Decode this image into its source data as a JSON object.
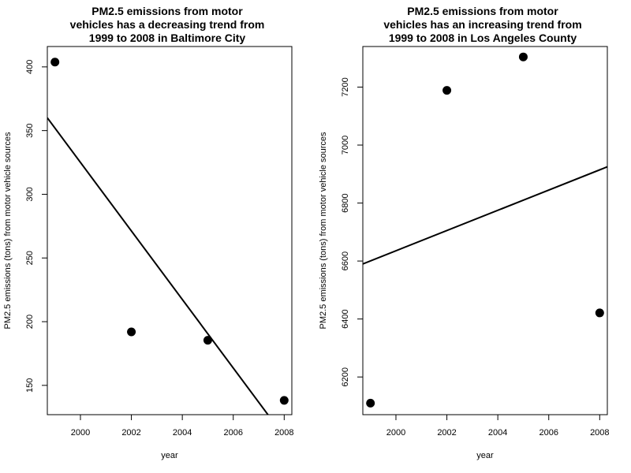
{
  "chart_data": [
    {
      "type": "scatter",
      "title_lines": [
        "PM2.5 emissions from motor",
        "vehicles has a decreasing trend from",
        "1999 to 2008 in Baltimore City"
      ],
      "xlabel": "year",
      "ylabel": "PM2.5 emissions (tons) from motor vehicle sources",
      "xlim": [
        1998.7,
        2008.3
      ],
      "ylim": [
        127,
        416
      ],
      "xticks": [
        2000,
        2002,
        2004,
        2006,
        2008
      ],
      "yticks": [
        150,
        200,
        250,
        300,
        350,
        400
      ],
      "x": [
        1999,
        2002,
        2005,
        2008
      ],
      "y": [
        403.8,
        192.0,
        185.4,
        138.2
      ],
      "trend_line": {
        "intercept_at_1998.7": 360,
        "slope": -26.9
      },
      "marker_color": "#000000",
      "line_color": "#000000"
    },
    {
      "type": "scatter",
      "title_lines": [
        "PM2.5 emissions from motor",
        "vehicles has an increasing trend from",
        "1999 to 2008 in Los Angeles County"
      ],
      "xlabel": "year",
      "ylabel": "PM2.5 emissions (tons) from motor vehicle sources",
      "xlim": [
        1998.7,
        2008.3
      ],
      "ylim": [
        6070,
        7340
      ],
      "xticks": [
        2000,
        2002,
        2004,
        2006,
        2008
      ],
      "yticks": [
        6200,
        6400,
        6600,
        6800,
        7000,
        7200
      ],
      "x": [
        1999,
        2002,
        2005,
        2008
      ],
      "y": [
        6109.7,
        7188.7,
        7304.1,
        6421.0
      ],
      "trend_line": {
        "intercept_at_1998.7": 6590,
        "slope": 34.9
      },
      "marker_color": "#000000",
      "line_color": "#000000"
    }
  ]
}
